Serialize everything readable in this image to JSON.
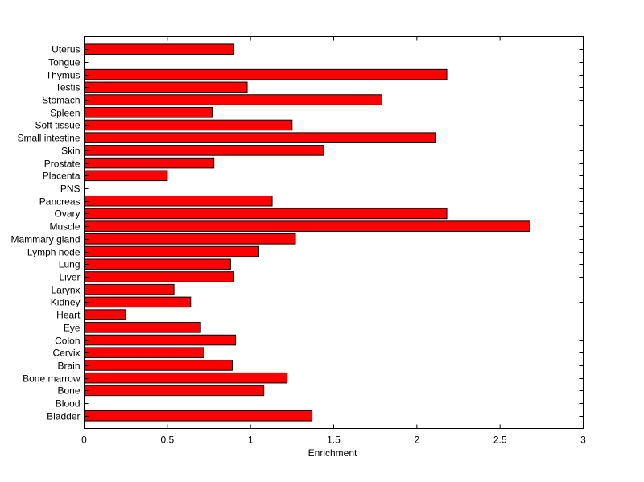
{
  "chart_data": {
    "type": "bar",
    "orientation": "horizontal",
    "title": "",
    "xlabel": "Enrichment",
    "ylabel": "",
    "xlim": [
      0,
      3
    ],
    "xticks": [
      0,
      0.5,
      1,
      1.5,
      2,
      2.5,
      3
    ],
    "xtick_labels": [
      "0",
      "0.5",
      "1",
      "1.5",
      "2",
      "2.5",
      "3"
    ],
    "grid": false,
    "bar_color": "#ff0000",
    "edge_color": "#000000",
    "categories": [
      "Bladder",
      "Blood",
      "Bone",
      "Bone marrow",
      "Brain",
      "Cervix",
      "Colon",
      "Eye",
      "Heart",
      "Kidney",
      "Larynx",
      "Liver",
      "Lung",
      "Lymph node",
      "Mammary gland",
      "Muscle",
      "Ovary",
      "Pancreas",
      "PNS",
      "Placenta",
      "Prostate",
      "Skin",
      "Small intestine",
      "Soft tissue",
      "Spleen",
      "Stomach",
      "Testis",
      "Thymus",
      "Tongue",
      "Uterus"
    ],
    "values": [
      1.37,
      0,
      1.08,
      1.22,
      0.89,
      0.72,
      0.91,
      0.7,
      0.25,
      0.64,
      0.54,
      0.9,
      0.88,
      1.05,
      1.27,
      2.68,
      2.18,
      1.13,
      0,
      0.5,
      0.78,
      1.44,
      2.11,
      1.25,
      0.77,
      1.79,
      0.98,
      2.18,
      0,
      0.9
    ]
  }
}
